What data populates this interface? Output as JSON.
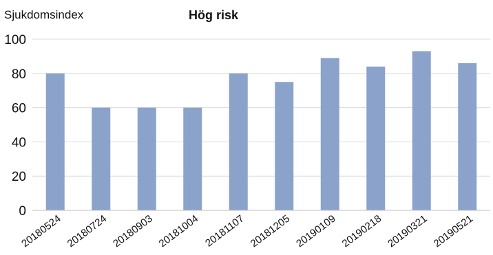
{
  "chart_data": {
    "type": "bar",
    "title": "Hög risk",
    "ylabel": "Sjukdomsindex",
    "xlabel": "",
    "categories": [
      "20180524",
      "20180724",
      "20180903",
      "20181004",
      "20181107",
      "20181205",
      "20190109",
      "20190218",
      "20190321",
      "20190521"
    ],
    "values": [
      80,
      60,
      60,
      60,
      80,
      75,
      89,
      84,
      93,
      86
    ],
    "ylim": [
      0,
      100
    ],
    "yticks": [
      "0",
      "20",
      "40",
      "60",
      "80",
      "100"
    ],
    "grid": true,
    "bar_color": "#8ba3cb"
  }
}
